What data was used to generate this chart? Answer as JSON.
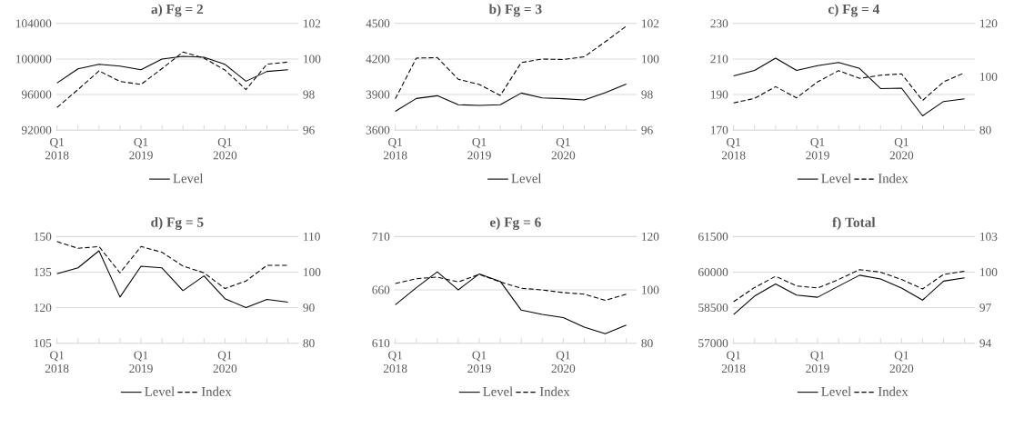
{
  "chart_data": [
    {
      "type": "line",
      "title": "a) Fg = 2",
      "categories": [
        "Q1 2018",
        null,
        null,
        null,
        "Q1 2019",
        null,
        null,
        null,
        "Q1 2020",
        null,
        null,
        null
      ],
      "ylim": [
        92000,
        104000
      ],
      "yticks": [
        92000,
        96000,
        100000,
        104000
      ],
      "y2lim": [
        96,
        102
      ],
      "y2ticks": [
        96,
        98,
        100,
        102
      ],
      "grid": "y",
      "legend": "bottom",
      "series": [
        {
          "name": "Level",
          "color": "#000000",
          "line_style": "solid",
          "values": [
            97300,
            98900,
            99400,
            99200,
            98800,
            100000,
            100300,
            100200,
            99400,
            97500,
            98600,
            98800
          ]
        },
        {
          "color": "#000000",
          "line_style": "dashed",
          "axis": "y2",
          "values": [
            97.27,
            98.28,
            99.33,
            98.74,
            98.57,
            99.46,
            100.39,
            100.05,
            99.38,
            98.28,
            99.71,
            99.83
          ]
        }
      ]
    },
    {
      "type": "line",
      "title": "b) Fg = 3",
      "categories": [
        "Q1 2018",
        null,
        null,
        null,
        "Q1 2019",
        null,
        null,
        null,
        "Q1 2020",
        null,
        null,
        null
      ],
      "ylim": [
        3600,
        4500
      ],
      "yticks": [
        3600,
        3900,
        4200,
        4500
      ],
      "y2lim": [
        96,
        102
      ],
      "y2ticks": [
        96,
        98,
        100,
        102
      ],
      "grid": "y",
      "legend": "bottom",
      "series": [
        {
          "name": "Level",
          "color": "#000000",
          "line_style": "solid",
          "values": [
            3759,
            3867,
            3890,
            3814,
            3809,
            3814,
            3913,
            3872,
            3865,
            3855,
            3915,
            3988
          ]
        },
        {
          "color": "#000000",
          "line_style": "dashed",
          "axis": "y2",
          "values": [
            97.76,
            100.05,
            100.08,
            98.86,
            98.57,
            97.95,
            99.8,
            100.0,
            99.97,
            100.13,
            100.97,
            101.85
          ]
        }
      ]
    },
    {
      "type": "line",
      "title": "c) Fg = 4",
      "categories": [
        "Q1 2018",
        null,
        null,
        null,
        "Q1 2019",
        null,
        null,
        null,
        "Q1 2020",
        null,
        null,
        null
      ],
      "ylim": [
        170,
        230
      ],
      "yticks": [
        170,
        190,
        210,
        230
      ],
      "y2lim": [
        80,
        120
      ],
      "y2ticks": [
        80,
        100,
        120
      ],
      "grid": "y",
      "legend": "bottom",
      "series": [
        {
          "name": "Level",
          "color": "#000000",
          "line_style": "solid",
          "values": [
            200.5,
            203.6,
            210.5,
            203.6,
            206.3,
            208.1,
            204.7,
            193.4,
            193.6,
            178.0,
            186.1,
            187.6
          ]
        },
        {
          "name": "Index",
          "color": "#000000",
          "line_style": "dashed",
          "axis": "y2",
          "values": [
            90.2,
            91.9,
            96.3,
            92.1,
            98.1,
            102.3,
            99.4,
            100.6,
            101.1,
            91.1,
            98.1,
            101.5
          ]
        }
      ]
    },
    {
      "type": "line",
      "title": "d) Fg = 5",
      "categories": [
        "Q1 2018",
        null,
        null,
        null,
        "Q1 2019",
        null,
        null,
        null,
        "Q1 2020",
        null,
        null,
        null
      ],
      "ylim": [
        105,
        150
      ],
      "yticks": [
        105,
        120,
        135,
        150
      ],
      "y2lim": [
        80,
        110
      ],
      "y2ticks": [
        80,
        90,
        100,
        110
      ],
      "grid": "y",
      "legend": "bottom",
      "series": [
        {
          "name": "Level",
          "color": "#000000",
          "line_style": "solid",
          "values": [
            134.3,
            136.8,
            144.0,
            124.5,
            137.5,
            136.8,
            127.2,
            133.4,
            123.8,
            120.0,
            123.5,
            122.3
          ]
        },
        {
          "name": "Index",
          "color": "#000000",
          "line_style": "dashed",
          "axis": "y2",
          "values": [
            108.6,
            106.7,
            107.2,
            99.8,
            107.2,
            105.6,
            101.7,
            99.8,
            95.4,
            97.5,
            101.9,
            101.9
          ]
        }
      ]
    },
    {
      "type": "line",
      "title": "e) Fg = 6",
      "categories": [
        "Q1 2018",
        null,
        null,
        null,
        "Q1 2019",
        null,
        null,
        null,
        "Q1 2020",
        null,
        null,
        null
      ],
      "ylim": [
        610,
        710
      ],
      "yticks": [
        610,
        660,
        710
      ],
      "y2lim": [
        80,
        120
      ],
      "y2ticks": [
        80,
        100,
        120
      ],
      "grid": "y",
      "legend": "bottom",
      "series": [
        {
          "name": "Level",
          "color": "#000000",
          "line_style": "solid",
          "values": [
            646,
            662,
            677,
            660,
            675,
            668,
            641,
            637,
            634,
            625,
            619,
            627
          ]
        },
        {
          "name": "Index",
          "color": "#000000",
          "line_style": "dashed",
          "axis": "y2",
          "values": [
            102.4,
            104.2,
            104.8,
            103.0,
            105.8,
            103.0,
            100.6,
            100.0,
            99.0,
            98.4,
            96.1,
            98.4
          ]
        }
      ]
    },
    {
      "type": "line",
      "title": "f) Total",
      "categories": [
        "Q1 2018",
        null,
        null,
        null,
        "Q1 2019",
        null,
        null,
        null,
        "Q1 2020",
        null,
        null,
        null
      ],
      "ylim": [
        57000,
        61500
      ],
      "yticks": [
        57000,
        58500,
        60000,
        61500
      ],
      "y2lim": [
        94,
        103
      ],
      "y2ticks": [
        94,
        97,
        100,
        103
      ],
      "grid": "y",
      "legend": "bottom",
      "series": [
        {
          "name": "Level",
          "color": "#000000",
          "line_style": "solid",
          "values": [
            58210,
            58990,
            59500,
            59030,
            58940,
            59410,
            59870,
            59710,
            59330,
            58820,
            59620,
            59760
          ]
        },
        {
          "name": "Index",
          "color": "#000000",
          "line_style": "dashed",
          "axis": "y2",
          "values": [
            97.51,
            98.7,
            99.65,
            98.84,
            98.66,
            99.38,
            100.21,
            100.0,
            99.38,
            98.58,
            99.81,
            100.07
          ]
        }
      ]
    }
  ]
}
